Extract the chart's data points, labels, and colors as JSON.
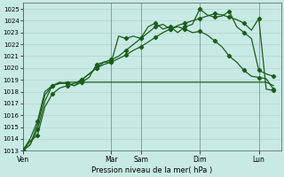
{
  "xlabel": "Pression niveau de la mer( hPa )",
  "background_color": "#c8eae5",
  "grid_color": "#b0ccc8",
  "line_color": "#1a5c1a",
  "ylim": [
    1013,
    1025.5
  ],
  "yticks": [
    1013,
    1014,
    1015,
    1016,
    1017,
    1018,
    1019,
    1020,
    1021,
    1022,
    1023,
    1024,
    1025
  ],
  "day_labels": [
    "Ven",
    "Mar",
    "Sam",
    "Dim",
    "Lun"
  ],
  "day_positions": [
    0,
    12,
    16,
    24,
    32
  ],
  "xlim": [
    0,
    35
  ],
  "line1_x": [
    0,
    1,
    2,
    3,
    4,
    5,
    6,
    7,
    8,
    9,
    10,
    11,
    12,
    13,
    14,
    15,
    16,
    17,
    18,
    19,
    20,
    21,
    22,
    23,
    24,
    25,
    26,
    27,
    28,
    29,
    30,
    31,
    32,
    33,
    34
  ],
  "line1_y": [
    1013.0,
    1013.8,
    1014.3,
    1016.7,
    1017.8,
    1018.3,
    1018.5,
    1018.7,
    1019.0,
    1019.5,
    1020.0,
    1020.3,
    1020.5,
    1020.8,
    1021.1,
    1021.5,
    1021.8,
    1022.2,
    1022.6,
    1023.0,
    1023.3,
    1023.6,
    1023.8,
    1024.0,
    1024.2,
    1024.4,
    1024.6,
    1024.5,
    1024.3,
    1024.1,
    1023.8,
    1023.2,
    1024.2,
    1018.2,
    1018.1
  ],
  "line2_x": [
    0,
    1,
    2,
    3,
    4,
    5,
    6,
    7,
    8,
    9,
    10,
    11,
    12,
    13,
    14,
    15,
    16,
    17,
    18,
    19,
    20,
    21,
    22,
    23,
    24,
    25,
    26,
    27,
    28,
    29,
    30,
    31,
    32,
    33,
    34
  ],
  "line2_y": [
    1013.0,
    1013.5,
    1014.8,
    1017.2,
    1018.5,
    1018.7,
    1018.7,
    1018.5,
    1018.8,
    1019.2,
    1020.3,
    1020.5,
    1020.5,
    1022.7,
    1022.5,
    1022.7,
    1022.5,
    1023.5,
    1023.8,
    1023.3,
    1023.5,
    1023.0,
    1023.5,
    1023.7,
    1025.0,
    1024.5,
    1024.3,
    1024.4,
    1024.8,
    1023.5,
    1023.0,
    1022.5,
    1019.8,
    1019.5,
    1019.3
  ],
  "line3_x": [
    0,
    1,
    2,
    3,
    4,
    5,
    6,
    7,
    8,
    9,
    10,
    11,
    12,
    13,
    14,
    15,
    16,
    17,
    18,
    19,
    20,
    21,
    22,
    23,
    24,
    25,
    26,
    27,
    28,
    29,
    30,
    31,
    32,
    33,
    34
  ],
  "line3_y": [
    1013.0,
    1013.5,
    1015.2,
    1017.7,
    1018.5,
    1018.7,
    1018.8,
    1018.8,
    1018.8,
    1018.8,
    1018.8,
    1018.8,
    1018.8,
    1018.8,
    1018.8,
    1018.8,
    1018.8,
    1018.8,
    1018.8,
    1018.8,
    1018.8,
    1018.8,
    1018.8,
    1018.8,
    1018.8,
    1018.8,
    1018.8,
    1018.8,
    1018.8,
    1018.8,
    1018.8,
    1018.8,
    1018.8,
    1018.8,
    1018.5
  ],
  "line4_x": [
    0,
    1,
    2,
    3,
    4,
    5,
    6,
    7,
    8,
    9,
    10,
    11,
    12,
    13,
    14,
    15,
    16,
    17,
    18,
    19,
    20,
    21,
    22,
    23,
    24,
    25,
    26,
    27,
    28,
    29,
    30,
    31,
    32,
    33,
    34
  ],
  "line4_y": [
    1013.0,
    1014.0,
    1015.5,
    1018.0,
    1018.5,
    1018.8,
    1018.7,
    1018.5,
    1019.0,
    1019.5,
    1020.0,
    1020.5,
    1020.7,
    1021.0,
    1021.5,
    1022.0,
    1022.5,
    1023.0,
    1023.5,
    1023.7,
    1023.3,
    1023.5,
    1023.3,
    1023.0,
    1023.1,
    1022.8,
    1022.3,
    1021.8,
    1021.0,
    1020.5,
    1019.8,
    1019.3,
    1019.2,
    1019.1,
    1018.2
  ],
  "line1_has_markers": true,
  "line2_has_markers": true,
  "line3_has_markers": false,
  "line4_has_markers": true
}
